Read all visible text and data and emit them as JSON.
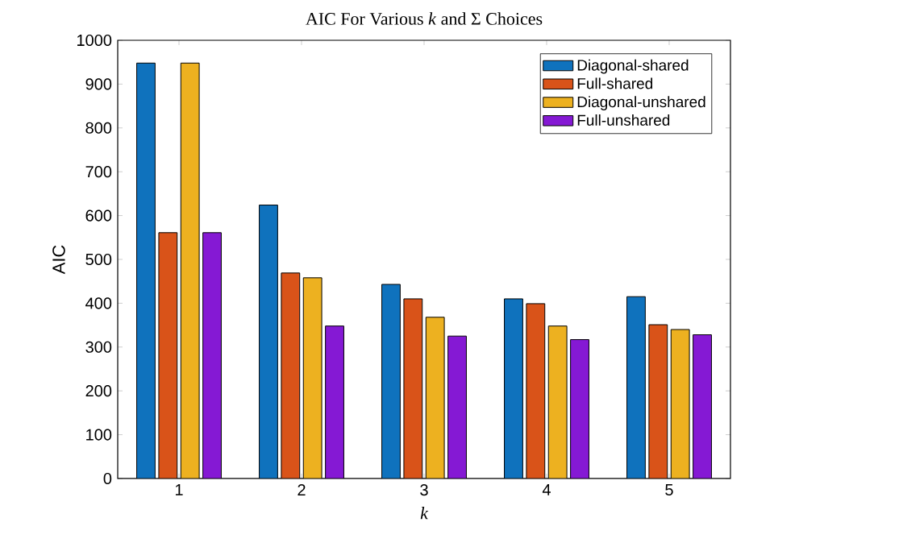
{
  "chart_data": {
    "type": "bar",
    "title": "AIC For Various *k* and Σ Choices",
    "xlabel": "k",
    "ylabel": "AIC",
    "categories": [
      "1",
      "2",
      "3",
      "4",
      "5"
    ],
    "series": [
      {
        "name": "Diagonal-shared",
        "color": "#0f72bd",
        "values": [
          948,
          624,
          443,
          410,
          415
        ]
      },
      {
        "name": "Full-shared",
        "color": "#d95319",
        "values": [
          561,
          469,
          410,
          399,
          351
        ]
      },
      {
        "name": "Diagonal-unshared",
        "color": "#edb120",
        "values": [
          948,
          458,
          368,
          348,
          340
        ]
      },
      {
        "name": "Full-unshared",
        "color": "#8519d4",
        "values": [
          561,
          348,
          325,
          317,
          328
        ]
      }
    ],
    "ylim": [
      0,
      1000
    ],
    "yticks": [
      0,
      100,
      200,
      300,
      400,
      500,
      600,
      700,
      800,
      900,
      1000
    ],
    "legend": "top right"
  }
}
